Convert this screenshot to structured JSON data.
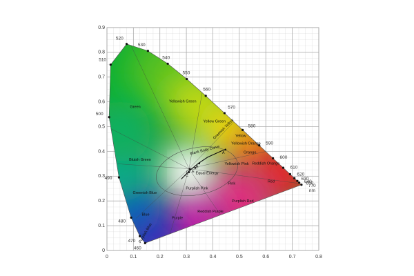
{
  "chart_data": {
    "type": "chromaticity",
    "xlim": [
      0,
      0.8
    ],
    "ylim": [
      0,
      0.9
    ],
    "xticks": [
      0,
      0.1,
      0.2,
      0.3,
      0.4,
      0.5,
      0.6,
      0.7,
      0.8
    ],
    "yticks": [
      0,
      0.1,
      0.2,
      0.3,
      0.4,
      0.5,
      0.6,
      0.7,
      0.8,
      0.9
    ],
    "grid": true,
    "locus": {
      "unit": "nm",
      "wavelengths": [
        460,
        470,
        480,
        490,
        500,
        510,
        520,
        530,
        540,
        550,
        560,
        570,
        580,
        590,
        600,
        610,
        620,
        630,
        640,
        650,
        770
      ],
      "x": [
        0.144,
        0.1241,
        0.0913,
        0.0454,
        0.0082,
        0.0139,
        0.0743,
        0.1547,
        0.2296,
        0.3016,
        0.3731,
        0.4441,
        0.5125,
        0.5752,
        0.627,
        0.6658,
        0.6915,
        0.7079,
        0.719,
        0.726,
        0.7347
      ],
      "y": [
        0.0297,
        0.0578,
        0.1327,
        0.295,
        0.5384,
        0.7502,
        0.8338,
        0.8059,
        0.7543,
        0.6923,
        0.6245,
        0.5547,
        0.4866,
        0.4242,
        0.3725,
        0.334,
        0.3083,
        0.292,
        0.2809,
        0.274,
        0.2653
      ]
    },
    "black_body_curve": {
      "label": "Black Body Curve",
      "x": [
        0.2807,
        0.3135,
        0.3451,
        0.3805,
        0.4369,
        0.4476
      ],
      "y": [
        0.2884,
        0.3237,
        0.3516,
        0.3768,
        0.4041,
        0.4074
      ]
    },
    "reference_points": [
      {
        "label": "A",
        "x": 0.4476,
        "y": 0.4074
      },
      {
        "label": "B",
        "x": 0.3484,
        "y": 0.3516
      },
      {
        "label": "C",
        "x": 0.3101,
        "y": 0.3162
      },
      {
        "label": "D",
        "x": 0.3127,
        "y": 0.329
      },
      {
        "label": "E",
        "x": 0.3333,
        "y": 0.3333
      }
    ],
    "annotations": [
      {
        "text": "Green",
        "x": 0.107,
        "y": 0.58
      },
      {
        "text": "Yellowish Green",
        "x": 0.286,
        "y": 0.6
      },
      {
        "text": "Yellow Green",
        "x": 0.406,
        "y": 0.52
      },
      {
        "text": "Greenish Yellow",
        "x": 0.44,
        "y": 0.49
      },
      {
        "text": "Yellow",
        "x": 0.505,
        "y": 0.462
      },
      {
        "text": "Yellowish Orange",
        "x": 0.525,
        "y": 0.43
      },
      {
        "text": "Orange",
        "x": 0.54,
        "y": 0.396
      },
      {
        "text": "Reddish Orange",
        "x": 0.6,
        "y": 0.35
      },
      {
        "text": "Red",
        "x": 0.62,
        "y": 0.279
      },
      {
        "text": "Yellowish Pink",
        "x": 0.49,
        "y": 0.348
      },
      {
        "text": "Pink",
        "x": 0.471,
        "y": 0.27
      },
      {
        "text": "Purplish Red",
        "x": 0.513,
        "y": 0.198
      },
      {
        "text": "Reddish Purple",
        "x": 0.391,
        "y": 0.156
      },
      {
        "text": "Purplish Pink",
        "x": 0.34,
        "y": 0.25
      },
      {
        "text": "Equal Energy",
        "x": 0.378,
        "y": 0.31
      },
      {
        "text": "Purple",
        "x": 0.266,
        "y": 0.131
      },
      {
        "text": "Blue",
        "x": 0.146,
        "y": 0.145
      },
      {
        "text": "Purplish Blue",
        "x": 0.145,
        "y": 0.07
      },
      {
        "text": "Greenish Blue",
        "x": 0.143,
        "y": 0.231
      },
      {
        "text": "Bluish Green",
        "x": 0.125,
        "y": 0.365
      }
    ]
  }
}
